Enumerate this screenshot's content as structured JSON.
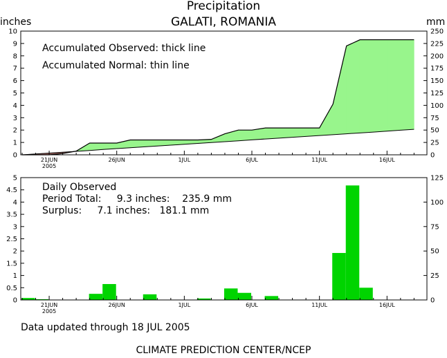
{
  "title": "Precipitation",
  "location": "GALATI, ROMANIA",
  "left_unit": "inches",
  "right_unit": "mm",
  "updated": "Data updated through 18 JUL 2005",
  "footer": "CLIMATE PREDICTION CENTER/NCEP",
  "colors": {
    "observed_fill": "#98f58c",
    "deficit_fill": "#a86a64",
    "daily_bar": "#00d400",
    "axis": "#000000"
  },
  "chart_data": [
    {
      "type": "area",
      "x": [
        "19 JUN",
        "20 JUN",
        "21 JUN",
        "22 JUN",
        "23 JUN",
        "24 JUN",
        "25 JUN",
        "26 JUN",
        "27 JUN",
        "28 JUN",
        "29 JUN",
        "30 JUN",
        "1 JUL",
        "2 JUL",
        "3 JUL",
        "4 JUL",
        "5 JUL",
        "6 JUL",
        "7 JUL",
        "8 JUL",
        "9 JUL",
        "10 JUL",
        "11 JUL",
        "12 JUL",
        "13 JUL",
        "14 JUL",
        "15 JUL",
        "16 JUL",
        "17 JUL",
        "18 JUL"
      ],
      "series": [
        {
          "name": "Accumulated Observed",
          "style": "thick line",
          "values": [
            0.0,
            0.0,
            0.0,
            0.1,
            0.3,
            0.95,
            0.95,
            0.95,
            1.2,
            1.2,
            1.2,
            1.2,
            1.2,
            1.2,
            1.25,
            1.7,
            2.0,
            2.0,
            2.17,
            2.17,
            2.17,
            2.17,
            2.17,
            4.1,
            8.8,
            9.3,
            9.3,
            9.3,
            9.3,
            9.3
          ]
        },
        {
          "name": "Accumulated Normal",
          "style": "thin line",
          "values": [
            0.0,
            0.07,
            0.14,
            0.21,
            0.28,
            0.35,
            0.43,
            0.5,
            0.57,
            0.64,
            0.71,
            0.78,
            0.85,
            0.92,
            0.99,
            1.06,
            1.13,
            1.21,
            1.28,
            1.35,
            1.42,
            1.49,
            1.56,
            1.63,
            1.7,
            1.77,
            1.84,
            1.91,
            1.99,
            2.06
          ]
        }
      ],
      "annotations": [
        "Accumulated Observed: thick line",
        "Accumulated Normal: thin line"
      ],
      "x_ticks": [
        "21JUN",
        "26JUN",
        "1JUL",
        "6JUL",
        "11JUL",
        "16JUL"
      ],
      "x_sublabel": "2005",
      "ylabel": "inches",
      "ylim": [
        0,
        10
      ],
      "y_ticks": [
        "0",
        "1",
        "2",
        "3",
        "4",
        "5",
        "6",
        "7",
        "8",
        "9",
        "10"
      ],
      "ylabel_right": "mm",
      "ylim_right": [
        0,
        250
      ],
      "y_ticks_right": [
        "0",
        "25",
        "50",
        "75",
        "100",
        "125",
        "150",
        "175",
        "200",
        "225",
        "250"
      ]
    },
    {
      "type": "bar",
      "x": [
        "19 JUN",
        "20 JUN",
        "21 JUN",
        "22 JUN",
        "23 JUN",
        "24 JUN",
        "25 JUN",
        "26 JUN",
        "27 JUN",
        "28 JUN",
        "29 JUN",
        "30 JUN",
        "1 JUL",
        "2 JUL",
        "3 JUL",
        "4 JUL",
        "5 JUL",
        "6 JUL",
        "7 JUL",
        "8 JUL",
        "9 JUL",
        "10 JUL",
        "11 JUL",
        "12 JUL",
        "13 JUL",
        "14 JUL",
        "15 JUL",
        "16 JUL",
        "17 JUL",
        "18 JUL"
      ],
      "series": [
        {
          "name": "Daily Observed",
          "values": [
            0.08,
            0.03,
            0,
            0,
            0,
            0.25,
            0.65,
            0,
            0,
            0.23,
            0,
            0,
            0,
            0.06,
            0,
            0.47,
            0.29,
            0,
            0.16,
            0,
            0,
            0,
            0,
            1.92,
            4.68,
            0.5,
            0,
            0,
            0,
            0
          ]
        }
      ],
      "annotations": [
        "Daily Observed",
        "Period Total:     9.3 inches:    235.9 mm",
        "Surplus:     7.1 inches:   181.1 mm"
      ],
      "x_ticks": [
        "21JUN",
        "26JUN",
        "1JUL",
        "6JUL",
        "11JUL",
        "16JUL"
      ],
      "x_sublabel": "2005",
      "ylim": [
        0,
        5
      ],
      "y_ticks": [
        "0",
        "0.5",
        "1",
        "1.5",
        "2",
        "2.5",
        "3",
        "3.5",
        "4",
        "4.5",
        "5"
      ],
      "ylim_right": [
        0,
        125
      ],
      "y_ticks_right": [
        "0",
        "25",
        "50",
        "75",
        "100",
        "125"
      ]
    }
  ]
}
